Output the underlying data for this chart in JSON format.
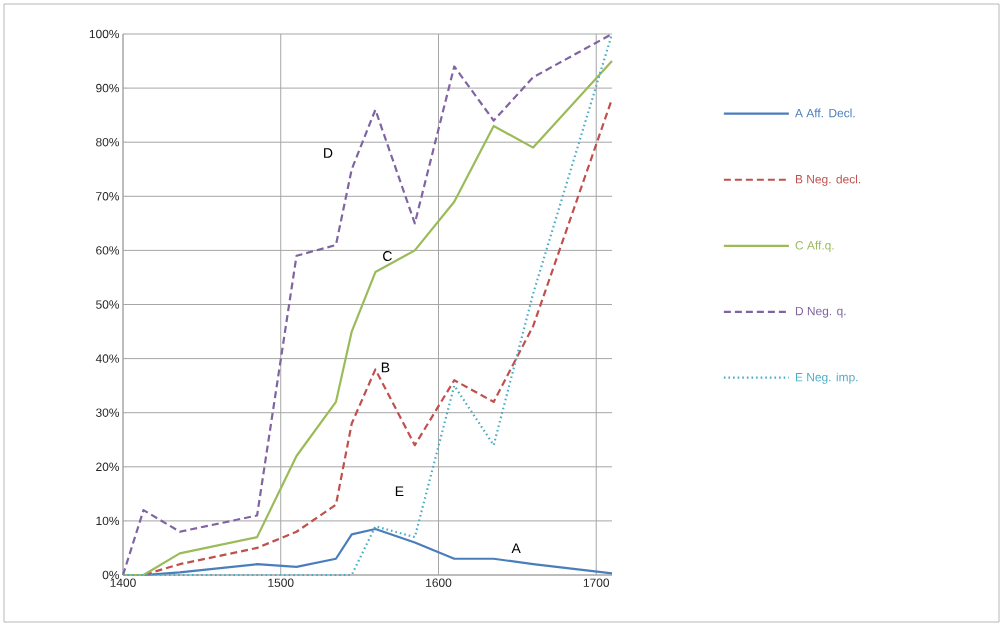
{
  "chart_data": {
    "type": "line",
    "x": [
      1400,
      1413,
      1436,
      1485,
      1510,
      1535,
      1545,
      1560,
      1585,
      1610,
      1635,
      1660,
      1710
    ],
    "series": [
      {
        "name": "A   Aff. Decl.",
        "color": "#4a7ebb",
        "line_style": "solid",
        "values": [
          0,
          0,
          0.5,
          2,
          1.5,
          3,
          7.5,
          8.5,
          6,
          3,
          3,
          2,
          0.3
        ]
      },
      {
        "name": "B   Neg. decl.",
        "color": "#c0504d",
        "line_style": "dashed",
        "values": [
          0,
          0,
          2,
          5,
          8,
          13,
          28,
          38,
          24,
          36,
          32,
          46,
          88
        ]
      },
      {
        "name": "C   Aff.q.",
        "color": "#9bbb59",
        "line_style": "solid",
        "values": [
          0,
          0,
          4,
          7,
          22,
          32,
          45,
          56,
          60,
          69,
          83,
          79,
          95
        ]
      },
      {
        "name": "D   Neg. q.",
        "color": "#8064a2",
        "line_style": "dashed",
        "values": [
          0,
          12,
          8,
          11,
          59,
          61,
          75,
          86,
          65,
          94,
          84,
          92,
          100
        ]
      },
      {
        "name": "E   Neg. imp.",
        "color": "#4bacc6",
        "line_style": "dotted",
        "values": [
          0,
          0,
          0,
          0,
          0,
          0,
          0,
          9,
          7,
          35,
          24,
          52,
          100
        ]
      }
    ],
    "xlim": [
      1400,
      1710
    ],
    "ylim": [
      0,
      100
    ],
    "xticks": [
      1400,
      1500,
      1600,
      1700
    ],
    "yticks": [
      {
        "value": 0,
        "label": "0%"
      },
      {
        "value": 10,
        "label": "10%"
      },
      {
        "value": 20,
        "label": "20%"
      },
      {
        "value": 30,
        "label": "30%"
      },
      {
        "value": 40,
        "label": "40%"
      },
      {
        "value": 50,
        "label": "50%"
      },
      {
        "value": 60,
        "label": "60%"
      },
      {
        "value": 70,
        "label": "70%"
      },
      {
        "value": 80,
        "label": "80%"
      },
      {
        "value": 90,
        "label": "90%"
      },
      {
        "value": 100,
        "label": "100%"
      }
    ],
    "annotations": [
      "A",
      "B",
      "C",
      "D",
      "E"
    ],
    "grid": true,
    "legend": "right",
    "marker": "none"
  }
}
